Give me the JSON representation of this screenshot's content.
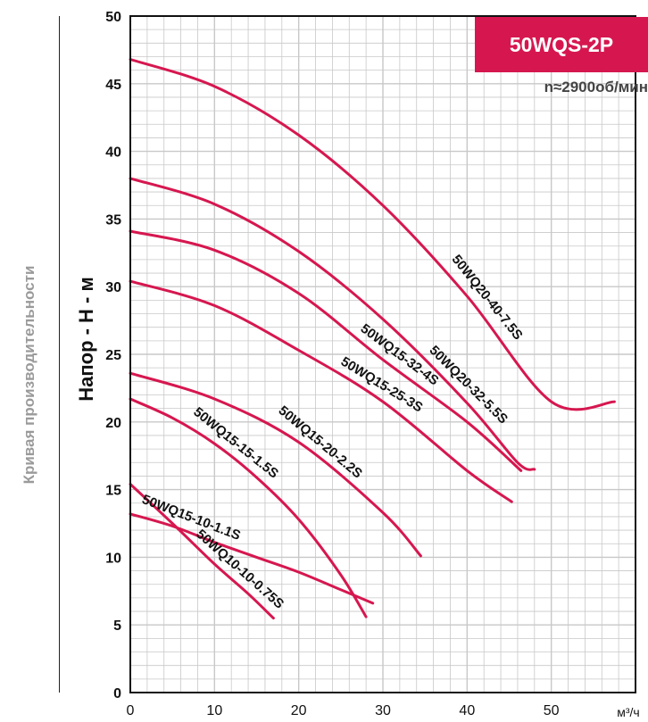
{
  "side_title": "Кривая производительности",
  "colors": {
    "curve": "#d6174f",
    "badge": "#d6174f",
    "grid": "#c8c8c8",
    "axis": "#111111"
  },
  "chart_data": {
    "type": "line",
    "title": "50WQS-2P",
    "subtitle": "n≈2900об/мин",
    "ylabel": "Напор - H - м",
    "xunit": "м³/ч",
    "xlim": [
      0,
      60
    ],
    "ylim": [
      0,
      50
    ],
    "xticks": [
      0,
      10,
      20,
      30,
      40,
      50
    ],
    "yticks": [
      0,
      5,
      10,
      15,
      20,
      25,
      30,
      35,
      40,
      45,
      50
    ],
    "grid": true,
    "series": [
      {
        "name": "50WQ20-40-7.5S",
        "x": [
          0,
          10,
          20,
          30,
          40,
          50,
          57.5
        ],
        "y": [
          46.8,
          44.8,
          41.2,
          36.0,
          29.3,
          21.5,
          21.5
        ]
      },
      {
        "name": "50WQ20-32-5.5S",
        "x": [
          0,
          10,
          20,
          30,
          40,
          46.0,
          48.0
        ],
        "y": [
          38.0,
          36.1,
          32.6,
          27.6,
          21.4,
          17.0,
          16.5
        ]
      },
      {
        "name": "50WQ15-32-4S",
        "x": [
          0,
          10,
          20,
          30,
          40,
          46.4
        ],
        "y": [
          34.1,
          32.7,
          29.5,
          24.6,
          20.0,
          16.4
        ]
      },
      {
        "name": "50WQ15-25-3S",
        "x": [
          0,
          10,
          20,
          30,
          40,
          45.3
        ],
        "y": [
          30.4,
          28.6,
          25.3,
          21.5,
          16.4,
          14.1
        ]
      },
      {
        "name": "50WQ15-20-2.2S",
        "x": [
          0,
          10,
          20,
          30,
          34.5
        ],
        "y": [
          23.6,
          21.7,
          18.5,
          13.3,
          10.1
        ]
      },
      {
        "name": "50WQ15-15-1.5S",
        "x": [
          0,
          5,
          10,
          15,
          20,
          25,
          28.0
        ],
        "y": [
          21.7,
          20.3,
          18.4,
          15.9,
          12.8,
          8.7,
          5.6
        ]
      },
      {
        "name": "50WQ15-10-1.1S",
        "x": [
          0,
          5,
          10,
          15,
          20,
          25,
          28.8
        ],
        "y": [
          13.2,
          12.3,
          11.1,
          10.0,
          8.9,
          7.6,
          6.6
        ]
      },
      {
        "name": "50WQ10-10-0.75S",
        "x": [
          0,
          5,
          10,
          14.0,
          17.0
        ],
        "y": [
          15.4,
          12.5,
          9.5,
          7.3,
          5.5
        ]
      }
    ]
  }
}
